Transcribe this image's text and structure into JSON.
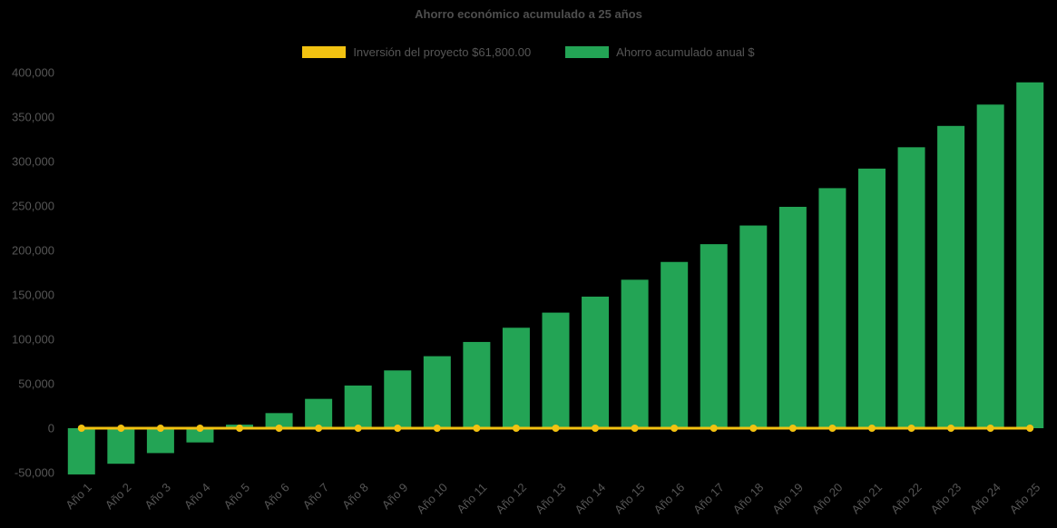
{
  "chart_data": {
    "type": "bar",
    "title": "Ahorro económico acumulado a 25 años",
    "categories": [
      "Año 1",
      "Año 2",
      "Año 3",
      "Año 4",
      "Año 5",
      "Año 6",
      "Año 7",
      "Año 8",
      "Año 9",
      "Año 10",
      "Año 11",
      "Año 12",
      "Año 13",
      "Año 14",
      "Año 15",
      "Año 16",
      "Año 17",
      "Año 18",
      "Año 19",
      "Año 20",
      "Año 21",
      "Año 22",
      "Año 23",
      "Año 24",
      "Año 25"
    ],
    "series": [
      {
        "name": "Inversión del proyecto $61,800.00",
        "type": "line",
        "color": "#F2C211",
        "values": [
          0,
          0,
          0,
          0,
          0,
          0,
          0,
          0,
          0,
          0,
          0,
          0,
          0,
          0,
          0,
          0,
          0,
          0,
          0,
          0,
          0,
          0,
          0,
          0,
          0
        ]
      },
      {
        "name": "Ahorro acumulado anual $",
        "type": "bar",
        "color": "#23A455",
        "values": [
          -52000,
          -40000,
          -28000,
          -16000,
          4000,
          17000,
          33000,
          48000,
          65000,
          81000,
          97000,
          113000,
          130000,
          148000,
          167000,
          187000,
          207000,
          228000,
          249000,
          270000,
          292000,
          316000,
          340000,
          364000,
          389000
        ]
      }
    ],
    "xlabel": "",
    "ylabel": "",
    "ylim": [
      -50000,
      400000
    ],
    "ytick_step": 50000,
    "grid": false,
    "legend_position": "top",
    "text_color": "#565656"
  }
}
